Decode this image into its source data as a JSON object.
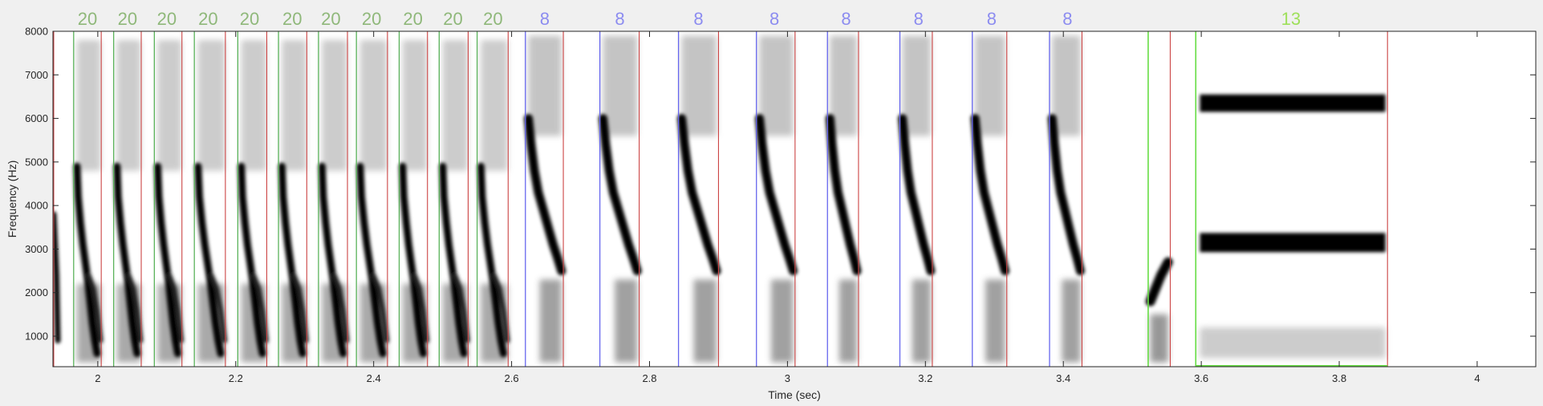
{
  "chart_data": {
    "type": "heatmap",
    "title": "",
    "xlabel": "Time (sec)",
    "ylabel": "Frequency (Hz)",
    "xlim": [
      1.935,
      4.085
    ],
    "ylim": [
      300,
      8000
    ],
    "x_ticks": [
      2,
      2.2,
      2.4,
      2.6,
      2.8,
      3,
      3.2,
      3.4,
      3.6,
      3.8,
      4
    ],
    "x_tick_labels": [
      "2",
      "2.2",
      "2.4",
      "2.6",
      "2.8",
      "3",
      "3.2",
      "3.4",
      "3.6",
      "3.8",
      "4"
    ],
    "y_ticks": [
      1000,
      2000,
      3000,
      4000,
      5000,
      6000,
      7000,
      8000
    ],
    "y_tick_labels": [
      "1000",
      "2000",
      "3000",
      "4000",
      "5000",
      "6000",
      "7000",
      "8000"
    ],
    "colors": {
      "label_20": "#8fb87a",
      "label_8": "#8c8cf0",
      "label_13": "#9ee05a",
      "onset_20": "#5bb35b",
      "onset_8": "#6666ee",
      "onset_13": "#66dd44",
      "offset_line": "#cc4444",
      "ink": "#000000",
      "plot_bg": "#ffffff",
      "figure_bg": "#f0f0f0"
    },
    "segments": [
      {
        "label": "20",
        "onset": 1.965,
        "offset": 2.005
      },
      {
        "label": "20",
        "onset": 2.023,
        "offset": 2.063
      },
      {
        "label": "20",
        "onset": 2.082,
        "offset": 2.122
      },
      {
        "label": "20",
        "onset": 2.14,
        "offset": 2.185
      },
      {
        "label": "20",
        "onset": 2.203,
        "offset": 2.245
      },
      {
        "label": "20",
        "onset": 2.262,
        "offset": 2.303
      },
      {
        "label": "20",
        "onset": 2.32,
        "offset": 2.362
      },
      {
        "label": "20",
        "onset": 2.375,
        "offset": 2.42
      },
      {
        "label": "20",
        "onset": 2.437,
        "offset": 2.478
      },
      {
        "label": "20",
        "onset": 2.495,
        "offset": 2.537
      },
      {
        "label": "20",
        "onset": 2.55,
        "offset": 2.595
      },
      {
        "label": "8",
        "onset": 2.62,
        "offset": 2.675
      },
      {
        "label": "8",
        "onset": 2.728,
        "offset": 2.785
      },
      {
        "label": "8",
        "onset": 2.842,
        "offset": 2.9
      },
      {
        "label": "8",
        "onset": 2.955,
        "offset": 3.011
      },
      {
        "label": "8",
        "onset": 3.058,
        "offset": 3.103
      },
      {
        "label": "8",
        "onset": 3.163,
        "offset": 3.21
      },
      {
        "label": "8",
        "onset": 3.268,
        "offset": 3.318
      },
      {
        "label": "8",
        "onset": 3.38,
        "offset": 3.427
      },
      {
        "label": "13",
        "onset": 3.523,
        "offset": 3.555
      },
      {
        "label": "13",
        "onset": 3.592,
        "offset": 3.87
      }
    ],
    "visible_segment_labels": [
      {
        "text": "20",
        "x": 1.985,
        "class": "20"
      },
      {
        "text": "20",
        "x": 2.043,
        "class": "20"
      },
      {
        "text": "20",
        "x": 2.1,
        "class": "20"
      },
      {
        "text": "20",
        "x": 2.16,
        "class": "20"
      },
      {
        "text": "20",
        "x": 2.22,
        "class": "20"
      },
      {
        "text": "20",
        "x": 2.282,
        "class": "20"
      },
      {
        "text": "20",
        "x": 2.338,
        "class": "20"
      },
      {
        "text": "20",
        "x": 2.397,
        "class": "20"
      },
      {
        "text": "20",
        "x": 2.457,
        "class": "20"
      },
      {
        "text": "20",
        "x": 2.515,
        "class": "20"
      },
      {
        "text": "20",
        "x": 2.573,
        "class": "20"
      },
      {
        "text": "8",
        "x": 2.648,
        "class": "8"
      },
      {
        "text": "8",
        "x": 2.757,
        "class": "8"
      },
      {
        "text": "8",
        "x": 2.871,
        "class": "8"
      },
      {
        "text": "8",
        "x": 2.981,
        "class": "8"
      },
      {
        "text": "8",
        "x": 3.085,
        "class": "8"
      },
      {
        "text": "8",
        "x": 3.19,
        "class": "8"
      },
      {
        "text": "8",
        "x": 3.296,
        "class": "8"
      },
      {
        "text": "8",
        "x": 3.406,
        "class": "8"
      },
      {
        "text": "13",
        "x": 3.73,
        "class": "13"
      }
    ],
    "ink_traces": {
      "20": [
        [
          0.0,
          4900
        ],
        [
          0.05,
          4200
        ],
        [
          0.15,
          3600
        ],
        [
          0.25,
          3100
        ],
        [
          0.35,
          2700
        ],
        [
          0.45,
          2300
        ],
        [
          0.55,
          1800
        ],
        [
          0.65,
          1300
        ],
        [
          0.75,
          900
        ],
        [
          0.85,
          600
        ]
      ],
      "8": [
        [
          0.0,
          6000
        ],
        [
          0.08,
          5400
        ],
        [
          0.18,
          4800
        ],
        [
          0.3,
          4300
        ],
        [
          0.45,
          3900
        ],
        [
          0.6,
          3500
        ],
        [
          0.75,
          3100
        ],
        [
          0.88,
          2800
        ],
        [
          1.0,
          2500
        ]
      ],
      "13a": [
        [
          0.0,
          1800
        ],
        [
          0.3,
          2100
        ],
        [
          0.6,
          2400
        ],
        [
          1.0,
          2700
        ]
      ],
      "13b_low": 3150,
      "13b_high": 6350
    }
  }
}
